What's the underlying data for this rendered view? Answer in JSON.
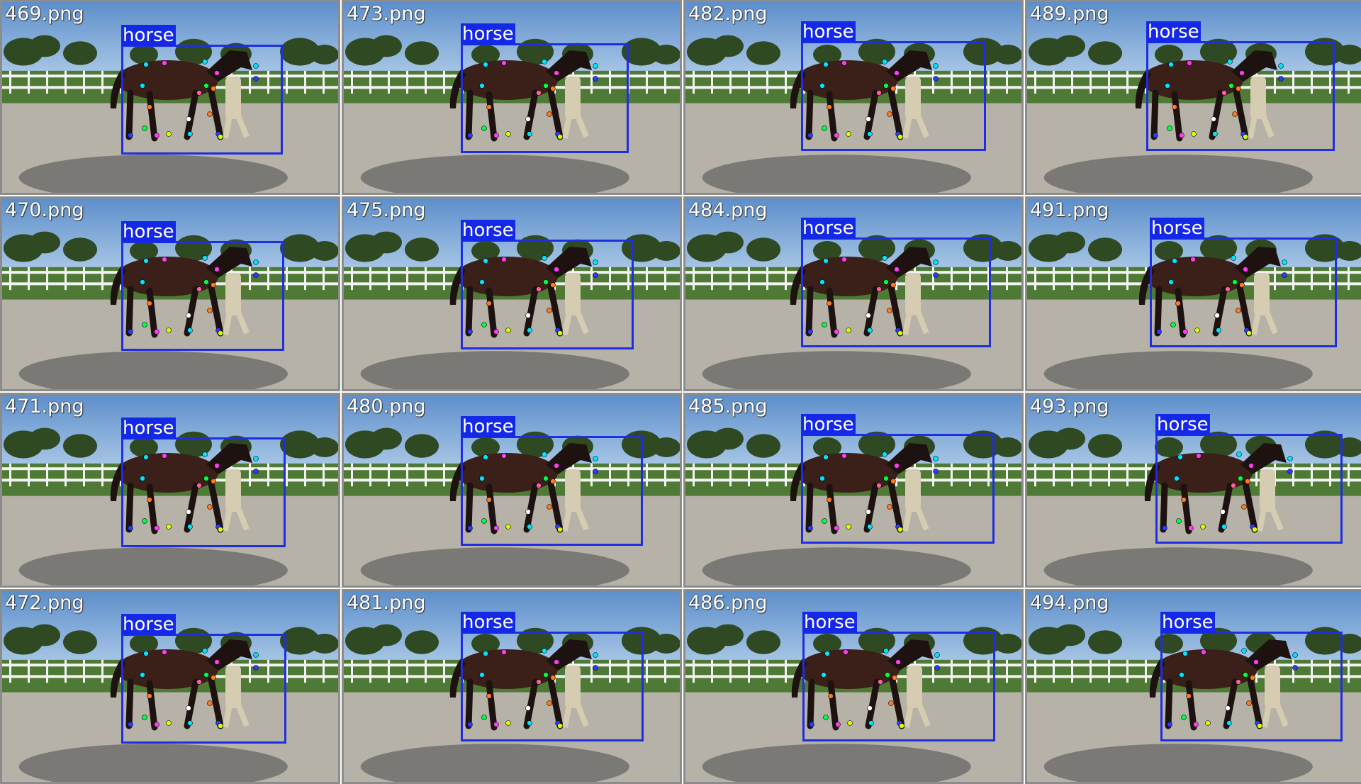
{
  "detection_label": "horse",
  "tiles": [
    {
      "file": "469.png"
    },
    {
      "file": "473.png"
    },
    {
      "file": "482.png"
    },
    {
      "file": "489.png"
    },
    {
      "file": "470.png"
    },
    {
      "file": "475.png"
    },
    {
      "file": "484.png"
    },
    {
      "file": "491.png"
    },
    {
      "file": "471.png"
    },
    {
      "file": "480.png"
    },
    {
      "file": "485.png"
    },
    {
      "file": "493.png"
    },
    {
      "file": "472.png"
    },
    {
      "file": "481.png"
    },
    {
      "file": "486.png"
    },
    {
      "file": "494.png"
    }
  ],
  "keypoint_colors": [
    "#00e5ff",
    "#ff3df0",
    "#00ff44",
    "#ff7a1a",
    "#ffffff",
    "#d8ff00",
    "#2a3cff",
    "#ff5fa0"
  ],
  "colors": {
    "bbox": "#1f2ee0",
    "label_bg": "#1428e8",
    "sky": "#6f9fd2",
    "grass": "#4f7a35",
    "ground": "#b7b2a8",
    "horse": "#3a2018",
    "tile_border": "#8c8c8c"
  }
}
